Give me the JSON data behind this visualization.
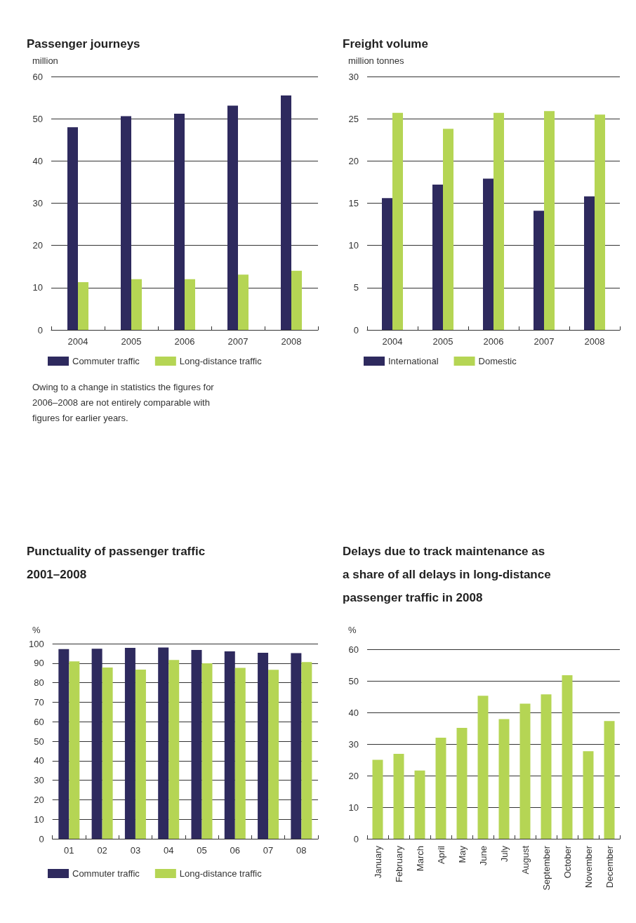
{
  "chart_data": [
    {
      "type": "bar",
      "title": "Passenger journeys",
      "ylabel": "million",
      "categories": [
        "2004",
        "2005",
        "2006",
        "2007",
        "2008"
      ],
      "series": [
        {
          "name": "Commuter traffic",
          "color": "#2e2a5e",
          "values": [
            48.0,
            50.6,
            51.2,
            53.1,
            55.5
          ]
        },
        {
          "name": "Long-distance traffic",
          "color": "#b5d554",
          "values": [
            11.3,
            12.0,
            12.0,
            13.1,
            14.0
          ]
        }
      ],
      "ylim": [
        0,
        60
      ],
      "yticks": [
        0,
        10,
        20,
        30,
        40,
        50,
        60
      ],
      "grid": "y",
      "legend": "bottom left",
      "annotations": [
        "Owing to a change in statistics the figures for 2006–2008 are not entirely comparable with figures for earlier years."
      ]
    },
    {
      "type": "bar",
      "title": "Freight volume",
      "ylabel": "million tonnes",
      "categories": [
        "2004",
        "2005",
        "2006",
        "2007",
        "2008"
      ],
      "series": [
        {
          "name": "International",
          "color": "#2e2a5e",
          "values": [
            15.6,
            17.2,
            17.9,
            14.1,
            15.8
          ]
        },
        {
          "name": "Domestic",
          "color": "#b5d554",
          "values": [
            25.7,
            23.8,
            25.7,
            25.9,
            25.5
          ]
        }
      ],
      "ylim": [
        0,
        30
      ],
      "yticks": [
        0,
        5,
        10,
        15,
        20,
        25,
        30
      ],
      "grid": "y",
      "legend": "bottom left"
    },
    {
      "type": "bar",
      "title": "Punctuality of passenger traffic 2001–2008",
      "ylabel": "%",
      "categories": [
        "01",
        "02",
        "03",
        "04",
        "05",
        "06",
        "07",
        "08"
      ],
      "series": [
        {
          "name": "Commuter traffic",
          "color": "#2e2a5e",
          "values": [
            97.2,
            97.4,
            97.8,
            98.0,
            96.8,
            96.0,
            95.3,
            95.1
          ]
        },
        {
          "name": "Long-distance traffic",
          "color": "#b5d554",
          "values": [
            90.9,
            87.8,
            86.7,
            91.6,
            89.9,
            87.6,
            86.6,
            90.6
          ]
        }
      ],
      "ylim": [
        0,
        100
      ],
      "yticks": [
        0,
        10,
        20,
        30,
        40,
        50,
        60,
        70,
        80,
        90,
        100
      ],
      "grid": "y",
      "legend": "bottom left"
    },
    {
      "type": "bar",
      "title": "Delays due to track maintenance as a share of all delays in long-distance passenger traffic in 2008",
      "ylabel": "%",
      "categories": [
        "January",
        "February",
        "March",
        "April",
        "May",
        "June",
        "July",
        "August",
        "September",
        "October",
        "November",
        "December"
      ],
      "series": [
        {
          "color": "#b5d554",
          "values": [
            25.0,
            26.9,
            21.6,
            32.0,
            35.1,
            45.3,
            37.9,
            42.8,
            45.7,
            51.8,
            27.7,
            37.3
          ]
        }
      ],
      "ylim": [
        0,
        60
      ],
      "yticks": [
        0,
        10,
        20,
        30,
        40,
        50,
        60
      ],
      "grid": "y"
    }
  ]
}
